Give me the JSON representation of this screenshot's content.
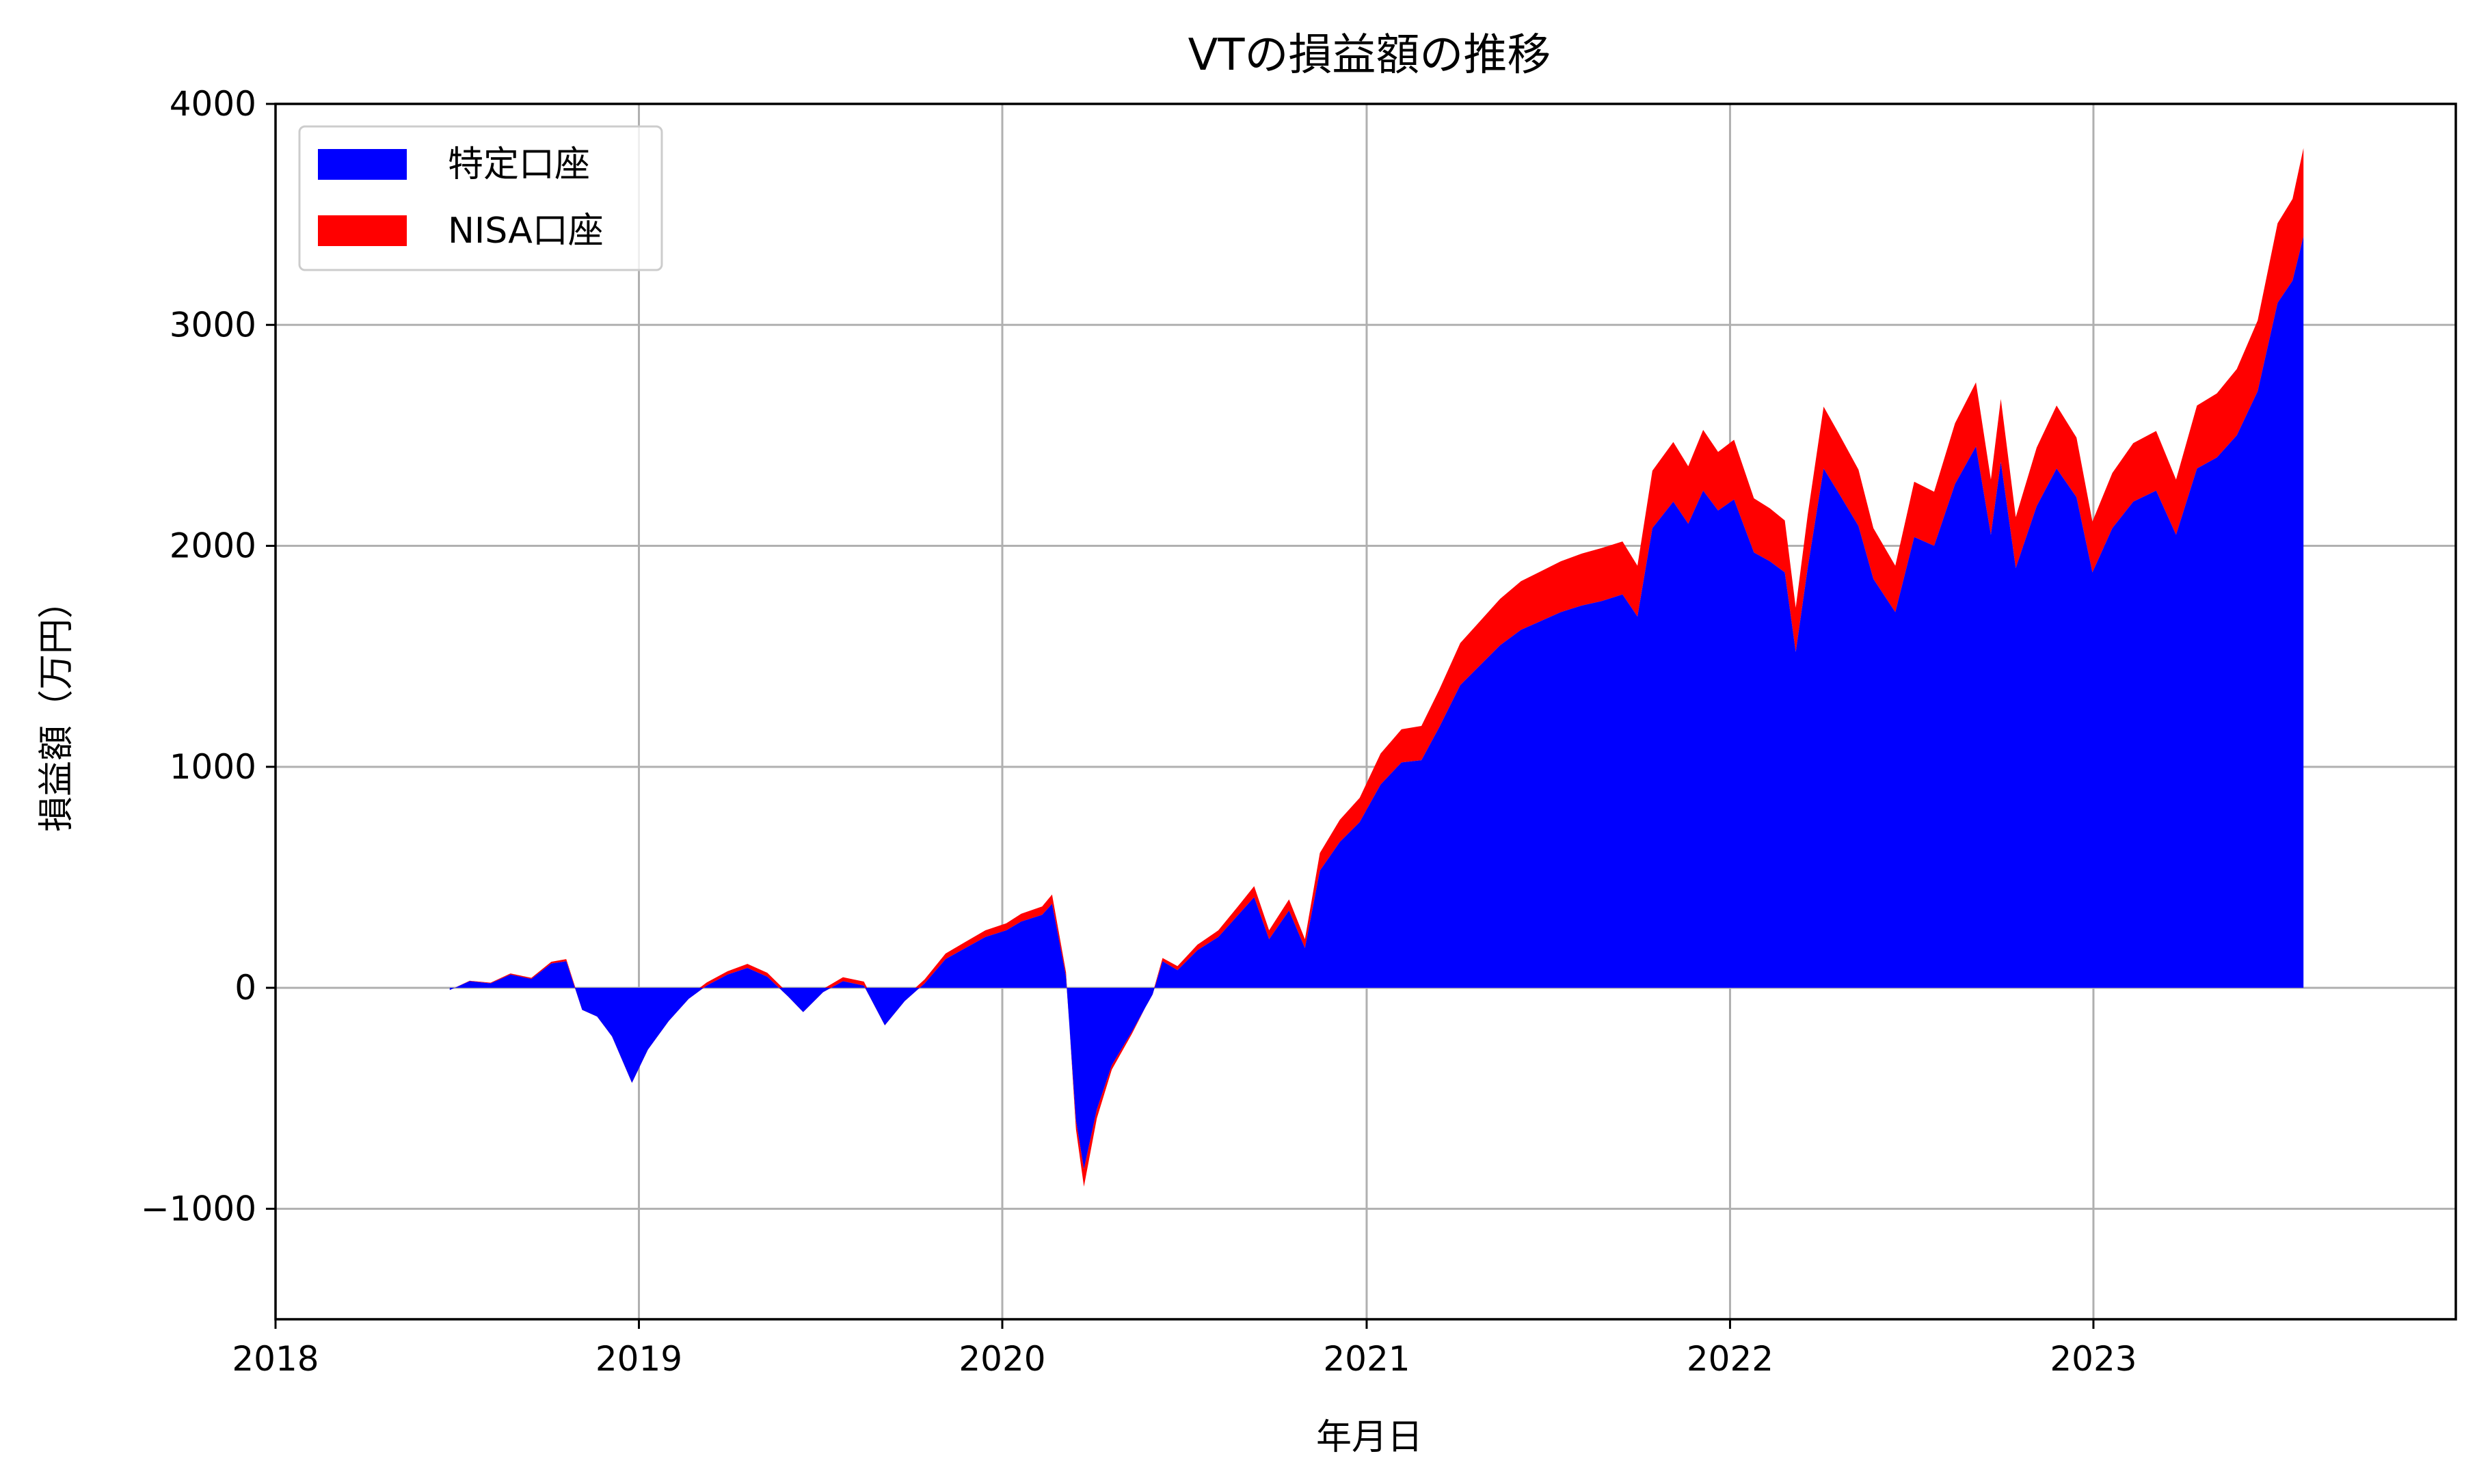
{
  "chart_data": {
    "type": "area",
    "title": "VTの損益額の推移",
    "xlabel": "年月日",
    "ylabel": "損益額（万円）",
    "xlim": [
      "2018-01-01",
      "2023-12-31"
    ],
    "ylim": [
      -1500,
      4000
    ],
    "x_ticks": [
      "2018",
      "2019",
      "2020",
      "2021",
      "2022",
      "2023"
    ],
    "y_ticks": [
      -1000,
      0,
      1000,
      2000,
      3000,
      4000
    ],
    "y_tick_labels": [
      "−1000",
      "0",
      "1000",
      "2000",
      "3000",
      "4000"
    ],
    "grid": true,
    "stacked": true,
    "legend": {
      "position": "top-left"
    },
    "x": [
      "2018-06-25",
      "2018-07-15",
      "2018-08-05",
      "2018-08-25",
      "2018-09-15",
      "2018-10-05",
      "2018-10-20",
      "2018-11-05",
      "2018-11-20",
      "2018-12-05",
      "2018-12-25",
      "2019-01-10",
      "2019-01-31",
      "2019-02-20",
      "2019-03-10",
      "2019-03-31",
      "2019-04-20",
      "2019-05-10",
      "2019-05-31",
      "2019-06-15",
      "2019-07-05",
      "2019-07-25",
      "2019-08-15",
      "2019-09-05",
      "2019-09-25",
      "2019-10-15",
      "2019-11-05",
      "2019-11-25",
      "2019-12-15",
      "2020-01-05",
      "2020-01-20",
      "2020-02-10",
      "2020-02-20",
      "2020-03-05",
      "2020-03-15",
      "2020-03-23",
      "2020-04-05",
      "2020-04-20",
      "2020-05-10",
      "2020-05-31",
      "2020-06-10",
      "2020-06-25",
      "2020-07-15",
      "2020-08-05",
      "2020-08-25",
      "2020-09-10",
      "2020-09-25",
      "2020-10-15",
      "2020-10-31",
      "2020-11-15",
      "2020-12-05",
      "2020-12-25",
      "2021-01-15",
      "2021-02-05",
      "2021-02-25",
      "2021-03-15",
      "2021-04-05",
      "2021-04-25",
      "2021-05-15",
      "2021-06-05",
      "2021-06-25",
      "2021-07-15",
      "2021-08-05",
      "2021-08-25",
      "2021-09-15",
      "2021-09-30",
      "2021-10-15",
      "2021-11-05",
      "2021-11-20",
      "2021-12-05",
      "2021-12-20",
      "2022-01-05",
      "2022-01-25",
      "2022-02-10",
      "2022-02-25",
      "2022-03-08",
      "2022-03-20",
      "2022-04-05",
      "2022-04-20",
      "2022-05-10",
      "2022-05-25",
      "2022-06-16",
      "2022-07-05",
      "2022-07-25",
      "2022-08-15",
      "2022-09-05",
      "2022-09-20",
      "2022-09-30",
      "2022-10-15",
      "2022-11-05",
      "2022-11-25",
      "2022-12-15",
      "2022-12-31",
      "2023-01-20",
      "2023-02-10",
      "2023-03-05",
      "2023-03-25",
      "2023-04-15",
      "2023-05-05",
      "2023-05-25",
      "2023-06-15",
      "2023-07-05",
      "2023-07-20",
      "2023-07-31"
    ],
    "series": [
      {
        "name": "特定口座",
        "color": "#0000ff",
        "values": [
          -10,
          30,
          20,
          60,
          40,
          110,
          120,
          -100,
          -130,
          -220,
          -430,
          -280,
          -150,
          -50,
          10,
          60,
          90,
          50,
          -40,
          -110,
          -20,
          30,
          10,
          -170,
          -60,
          20,
          130,
          180,
          230,
          260,
          300,
          330,
          380,
          50,
          -600,
          -820,
          -550,
          -350,
          -200,
          -30,
          120,
          80,
          170,
          230,
          330,
          410,
          220,
          350,
          180,
          530,
          660,
          750,
          920,
          1020,
          1030,
          1180,
          1370,
          1460,
          1550,
          1620,
          1660,
          1700,
          1730,
          1750,
          1780,
          1680,
          2080,
          2200,
          2100,
          2250,
          2160,
          2210,
          1970,
          1930,
          1880,
          1520,
          1900,
          2350,
          2240,
          2090,
          1850,
          1700,
          2040,
          2000,
          2280,
          2450,
          2050,
          2380,
          1900,
          2180,
          2350,
          2220,
          1880,
          2080,
          2200,
          2250,
          2050,
          2350,
          2400,
          2500,
          2700,
          3100,
          3200,
          3400
        ]
      },
      {
        "name": "NISA口座",
        "color": "#ff0000",
        "values": [
          0,
          2,
          3,
          5,
          5,
          8,
          10,
          5,
          5,
          4,
          3,
          8,
          10,
          12,
          14,
          15,
          18,
          18,
          15,
          12,
          15,
          18,
          18,
          14,
          16,
          18,
          25,
          28,
          30,
          32,
          35,
          38,
          42,
          20,
          -40,
          -80,
          -40,
          -20,
          -10,
          5,
          15,
          18,
          25,
          30,
          40,
          50,
          40,
          50,
          40,
          80,
          100,
          110,
          140,
          150,
          155,
          170,
          190,
          200,
          210,
          220,
          225,
          230,
          235,
          240,
          240,
          230,
          260,
          270,
          260,
          275,
          265,
          270,
          245,
          240,
          235,
          200,
          240,
          280,
          270,
          255,
          230,
          210,
          250,
          245,
          275,
          290,
          250,
          285,
          230,
          265,
          285,
          270,
          230,
          250,
          265,
          270,
          250,
          285,
          290,
          300,
          320,
          360,
          370,
          400
        ]
      }
    ]
  }
}
